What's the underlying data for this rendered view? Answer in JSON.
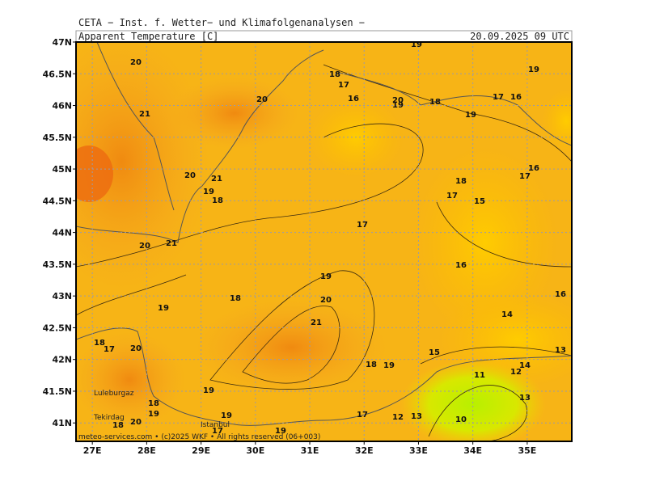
{
  "header": {
    "institute": "CETA − Inst. f. Wetter− und Klimafolgenanalysen −",
    "parameter": "Apparent_Temperature_[C]",
    "valid_time": "20.09.2025 09 UTC"
  },
  "map": {
    "xlim": [
      26.7,
      35.82
    ],
    "ylim": [
      40.71,
      47
    ],
    "xticks": [
      {
        "value": 27,
        "label": "27E"
      },
      {
        "value": 28,
        "label": "28E"
      },
      {
        "value": 29,
        "label": "29E"
      },
      {
        "value": 30,
        "label": "30E"
      },
      {
        "value": 31,
        "label": "31E"
      },
      {
        "value": 32,
        "label": "32E"
      },
      {
        "value": 33,
        "label": "33E"
      },
      {
        "value": 34,
        "label": "34E"
      },
      {
        "value": 35,
        "label": "35E"
      }
    ],
    "yticks": [
      {
        "value": 41,
        "label": "41N"
      },
      {
        "value": 41.5,
        "label": "41.5N"
      },
      {
        "value": 42,
        "label": "42N"
      },
      {
        "value": 42.5,
        "label": "42.5N"
      },
      {
        "value": 43,
        "label": "43N"
      },
      {
        "value": 43.5,
        "label": "43.5N"
      },
      {
        "value": 44,
        "label": "44N"
      },
      {
        "value": 44.5,
        "label": "44.5N"
      },
      {
        "value": 45,
        "label": "45N"
      },
      {
        "value": 45.5,
        "label": "45.5N"
      },
      {
        "value": 46,
        "label": "46N"
      },
      {
        "value": 46.5,
        "label": "46.5N"
      },
      {
        "value": 47,
        "label": "47N"
      }
    ],
    "grid": true,
    "contour_labels": [
      19,
      20,
      21,
      20,
      18,
      17,
      16,
      20,
      19,
      18,
      19,
      17,
      16,
      19,
      16,
      17,
      18,
      17,
      15,
      20,
      21,
      19,
      18,
      17,
      20,
      21,
      16,
      19,
      18,
      20,
      21,
      19,
      16,
      14,
      13,
      18,
      17,
      20,
      15,
      18,
      19,
      14,
      12,
      11,
      19,
      13,
      18,
      19,
      19,
      20,
      18,
      17,
      12,
      13,
      10,
      17,
      19
    ],
    "place_labels": [
      "Luleburgaz",
      "Tekirdag",
      "Istanbul"
    ],
    "credit": "meteo-services.com • (c)2025 WKF • All rights reserved (06+003)"
  }
}
